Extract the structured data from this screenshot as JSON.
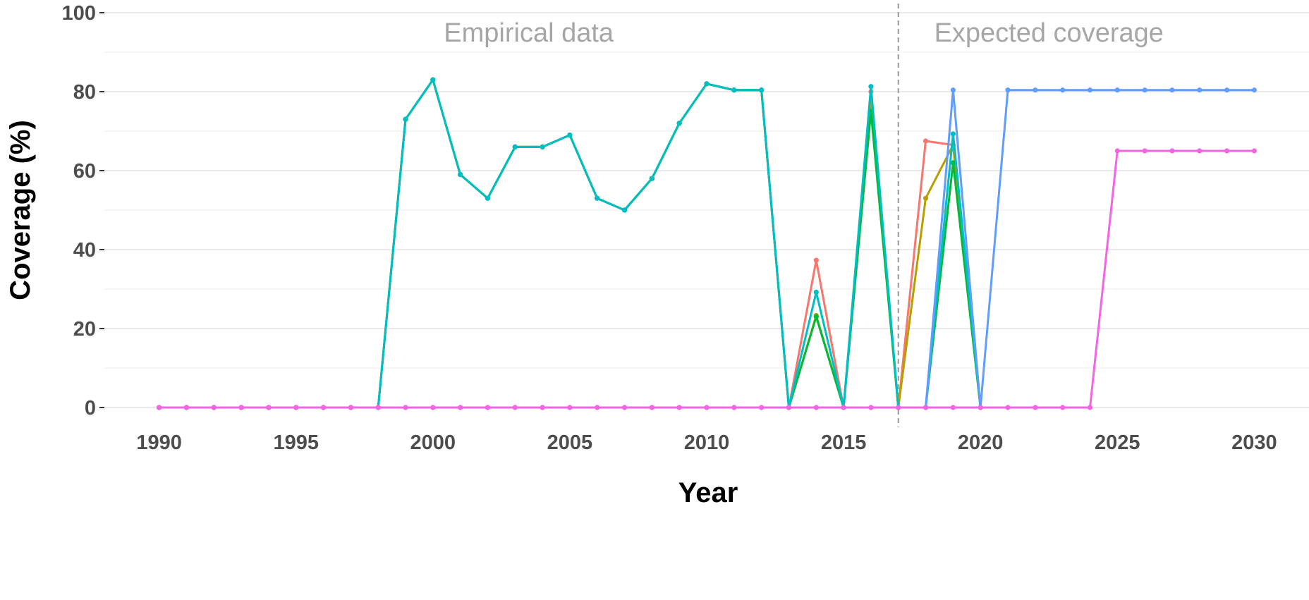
{
  "chart_data": {
    "type": "line",
    "title": "",
    "xlabel": "Year",
    "ylabel": "Coverage (%)",
    "xlim": [
      1988,
      2032
    ],
    "ylim": [
      0,
      100
    ],
    "x_ticks": [
      1990,
      1995,
      2000,
      2005,
      2010,
      2015,
      2020,
      2025,
      2030
    ],
    "y_ticks": [
      0,
      20,
      40,
      60,
      80,
      100
    ],
    "grid": true,
    "legend": "none",
    "vline": {
      "x": 2017,
      "style": "dashed",
      "color": "#999999"
    },
    "annotations": [
      {
        "text": "Empirical data",
        "x": 2003.5,
        "y": 95
      },
      {
        "text": "Expected coverage",
        "x": 2022.5,
        "y": 95
      }
    ],
    "x": [
      1990,
      1991,
      1992,
      1993,
      1994,
      1995,
      1996,
      1997,
      1998,
      1999,
      2000,
      2001,
      2002,
      2003,
      2004,
      2005,
      2006,
      2007,
      2008,
      2009,
      2010,
      2011,
      2012,
      2013,
      2014,
      2015,
      2016,
      2017,
      2018,
      2019,
      2020,
      2021,
      2022,
      2023,
      2024,
      2025,
      2026,
      2027,
      2028,
      2029,
      2030
    ],
    "series": [
      {
        "color": "#F8766D",
        "values": [
          0,
          0,
          0,
          0,
          0,
          0,
          0,
          0,
          0,
          73,
          83,
          59,
          53,
          66,
          66,
          69,
          53,
          50,
          58,
          72,
          82,
          80.4,
          80.4,
          0,
          37.3,
          0,
          80,
          0,
          67.5,
          66.5,
          0,
          null,
          null,
          null,
          null,
          null,
          null,
          null,
          null,
          null,
          null
        ]
      },
      {
        "color": "#B79F00",
        "values": [
          0,
          0,
          0,
          0,
          0,
          0,
          0,
          0,
          0,
          73,
          83,
          59,
          53,
          66,
          66,
          69,
          53,
          50,
          58,
          72,
          82,
          80.4,
          80.4,
          0,
          23.3,
          0,
          77,
          0,
          53,
          66.5,
          0,
          null,
          null,
          null,
          null,
          null,
          null,
          null,
          null,
          null,
          null
        ]
      },
      {
        "color": "#00BA38",
        "values": [
          0,
          0,
          0,
          0,
          0,
          0,
          0,
          0,
          0,
          73,
          83,
          59,
          53,
          66,
          66,
          69,
          53,
          50,
          58,
          72,
          82,
          80.4,
          80.4,
          0,
          23,
          0,
          75,
          0,
          0,
          62,
          0,
          null,
          null,
          null,
          null,
          null,
          null,
          null,
          null,
          null,
          null
        ]
      },
      {
        "color": "#00BFC4",
        "values": [
          0,
          0,
          0,
          0,
          0,
          0,
          0,
          0,
          0,
          73,
          83,
          59,
          53,
          66,
          66,
          69,
          53,
          50,
          58,
          72,
          82,
          80.4,
          80.4,
          0,
          29.2,
          0,
          81.3,
          0,
          0,
          69.3,
          0,
          null,
          null,
          null,
          null,
          null,
          null,
          null,
          null,
          null,
          null
        ]
      },
      {
        "color": "#619CFF",
        "values": [
          0,
          0,
          0,
          0,
          0,
          0,
          0,
          0,
          0,
          0,
          0,
          0,
          0,
          0,
          0,
          0,
          0,
          0,
          0,
          0,
          0,
          0,
          0,
          0,
          0,
          0,
          0,
          0,
          0,
          80.4,
          0,
          80.4,
          80.4,
          80.4,
          80.4,
          80.4,
          80.4,
          80.4,
          80.4,
          80.4,
          80.4
        ]
      },
      {
        "color": "#F564E3",
        "values": [
          0,
          0,
          0,
          0,
          0,
          0,
          0,
          0,
          0,
          0,
          0,
          0,
          0,
          0,
          0,
          0,
          0,
          0,
          0,
          0,
          0,
          0,
          0,
          0,
          0,
          0,
          0,
          0,
          0,
          0,
          0,
          0,
          0,
          0,
          0,
          65,
          65,
          65,
          65,
          65,
          65
        ]
      }
    ]
  }
}
